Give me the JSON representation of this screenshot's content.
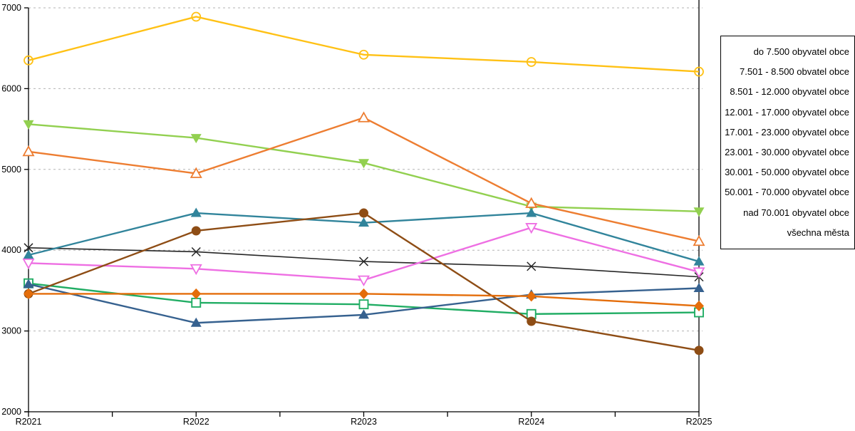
{
  "chart_data": {
    "type": "line",
    "title": "",
    "xlabel": "",
    "ylabel": "",
    "categories": [
      "R2021",
      "R2022",
      "R2023",
      "R2024",
      "R2025"
    ],
    "ylim": [
      2000,
      7000
    ],
    "ytick_step": 1000,
    "grid": "horizontal-dashed",
    "legend_position": "right-outside",
    "series": [
      {
        "name": "do 7.500 obyvatel obce",
        "color": "#FFC115",
        "marker": "circle-open",
        "values": [
          6350,
          6890,
          6420,
          6330,
          6210
        ]
      },
      {
        "name": "7.501 - 8.500 obvatel obce",
        "color": "#92D050",
        "marker": "triangle-down-filled",
        "values": [
          5560,
          5390,
          5080,
          4540,
          4480
        ]
      },
      {
        "name": "8.501 - 12.000 obyvatel obce",
        "color": "#ED7D31",
        "marker": "triangle-up-open",
        "values": [
          5220,
          4950,
          5640,
          4580,
          4110
        ]
      },
      {
        "name": "12.001 - 17.000 obyvatel obce",
        "color": "#262626",
        "marker": "x",
        "values": [
          4030,
          3980,
          3860,
          3800,
          3670
        ]
      },
      {
        "name": "17.001 - 23.000 obyvatel obce",
        "color": "#31849B",
        "marker": "triangle-up-filled",
        "values": [
          3940,
          4460,
          4340,
          4460,
          3860
        ]
      },
      {
        "name": "23.001 - 30.000 obyvatel obce",
        "color": "#EE6FE3",
        "marker": "triangle-down-open",
        "values": [
          3840,
          3770,
          3630,
          4280,
          3730
        ]
      },
      {
        "name": "30.001 - 50.000 obyvatel obce",
        "color": "#21AD64",
        "marker": "square-open",
        "values": [
          3590,
          3350,
          3330,
          3210,
          3230
        ]
      },
      {
        "name": "50.001 - 70.000 obyvatel obce",
        "color": "#36618F",
        "marker": "triangle-up-filled",
        "values": [
          3580,
          3100,
          3200,
          3450,
          3530
        ]
      },
      {
        "name": "nad 70.001 obyvatel obce",
        "color": "#8E4D15",
        "marker": "circle-filled",
        "values": [
          3460,
          4240,
          4460,
          3120,
          2760
        ]
      },
      {
        "name": "všechna města",
        "color": "#E46D0A",
        "marker": "diamond-filled",
        "values": [
          3460,
          3460,
          3460,
          3430,
          3310
        ]
      }
    ]
  },
  "axes": {
    "y_ticks": [
      "2000",
      "3000",
      "4000",
      "5000",
      "6000",
      "7000"
    ],
    "x_ticks": [
      "R2021",
      "R2022",
      "R2023",
      "R2024",
      "R2025"
    ]
  },
  "colors": {
    "background": "#FFFFFF",
    "grid": "#B3B3B3",
    "axis": "#000000",
    "legend_border": "#000000"
  }
}
